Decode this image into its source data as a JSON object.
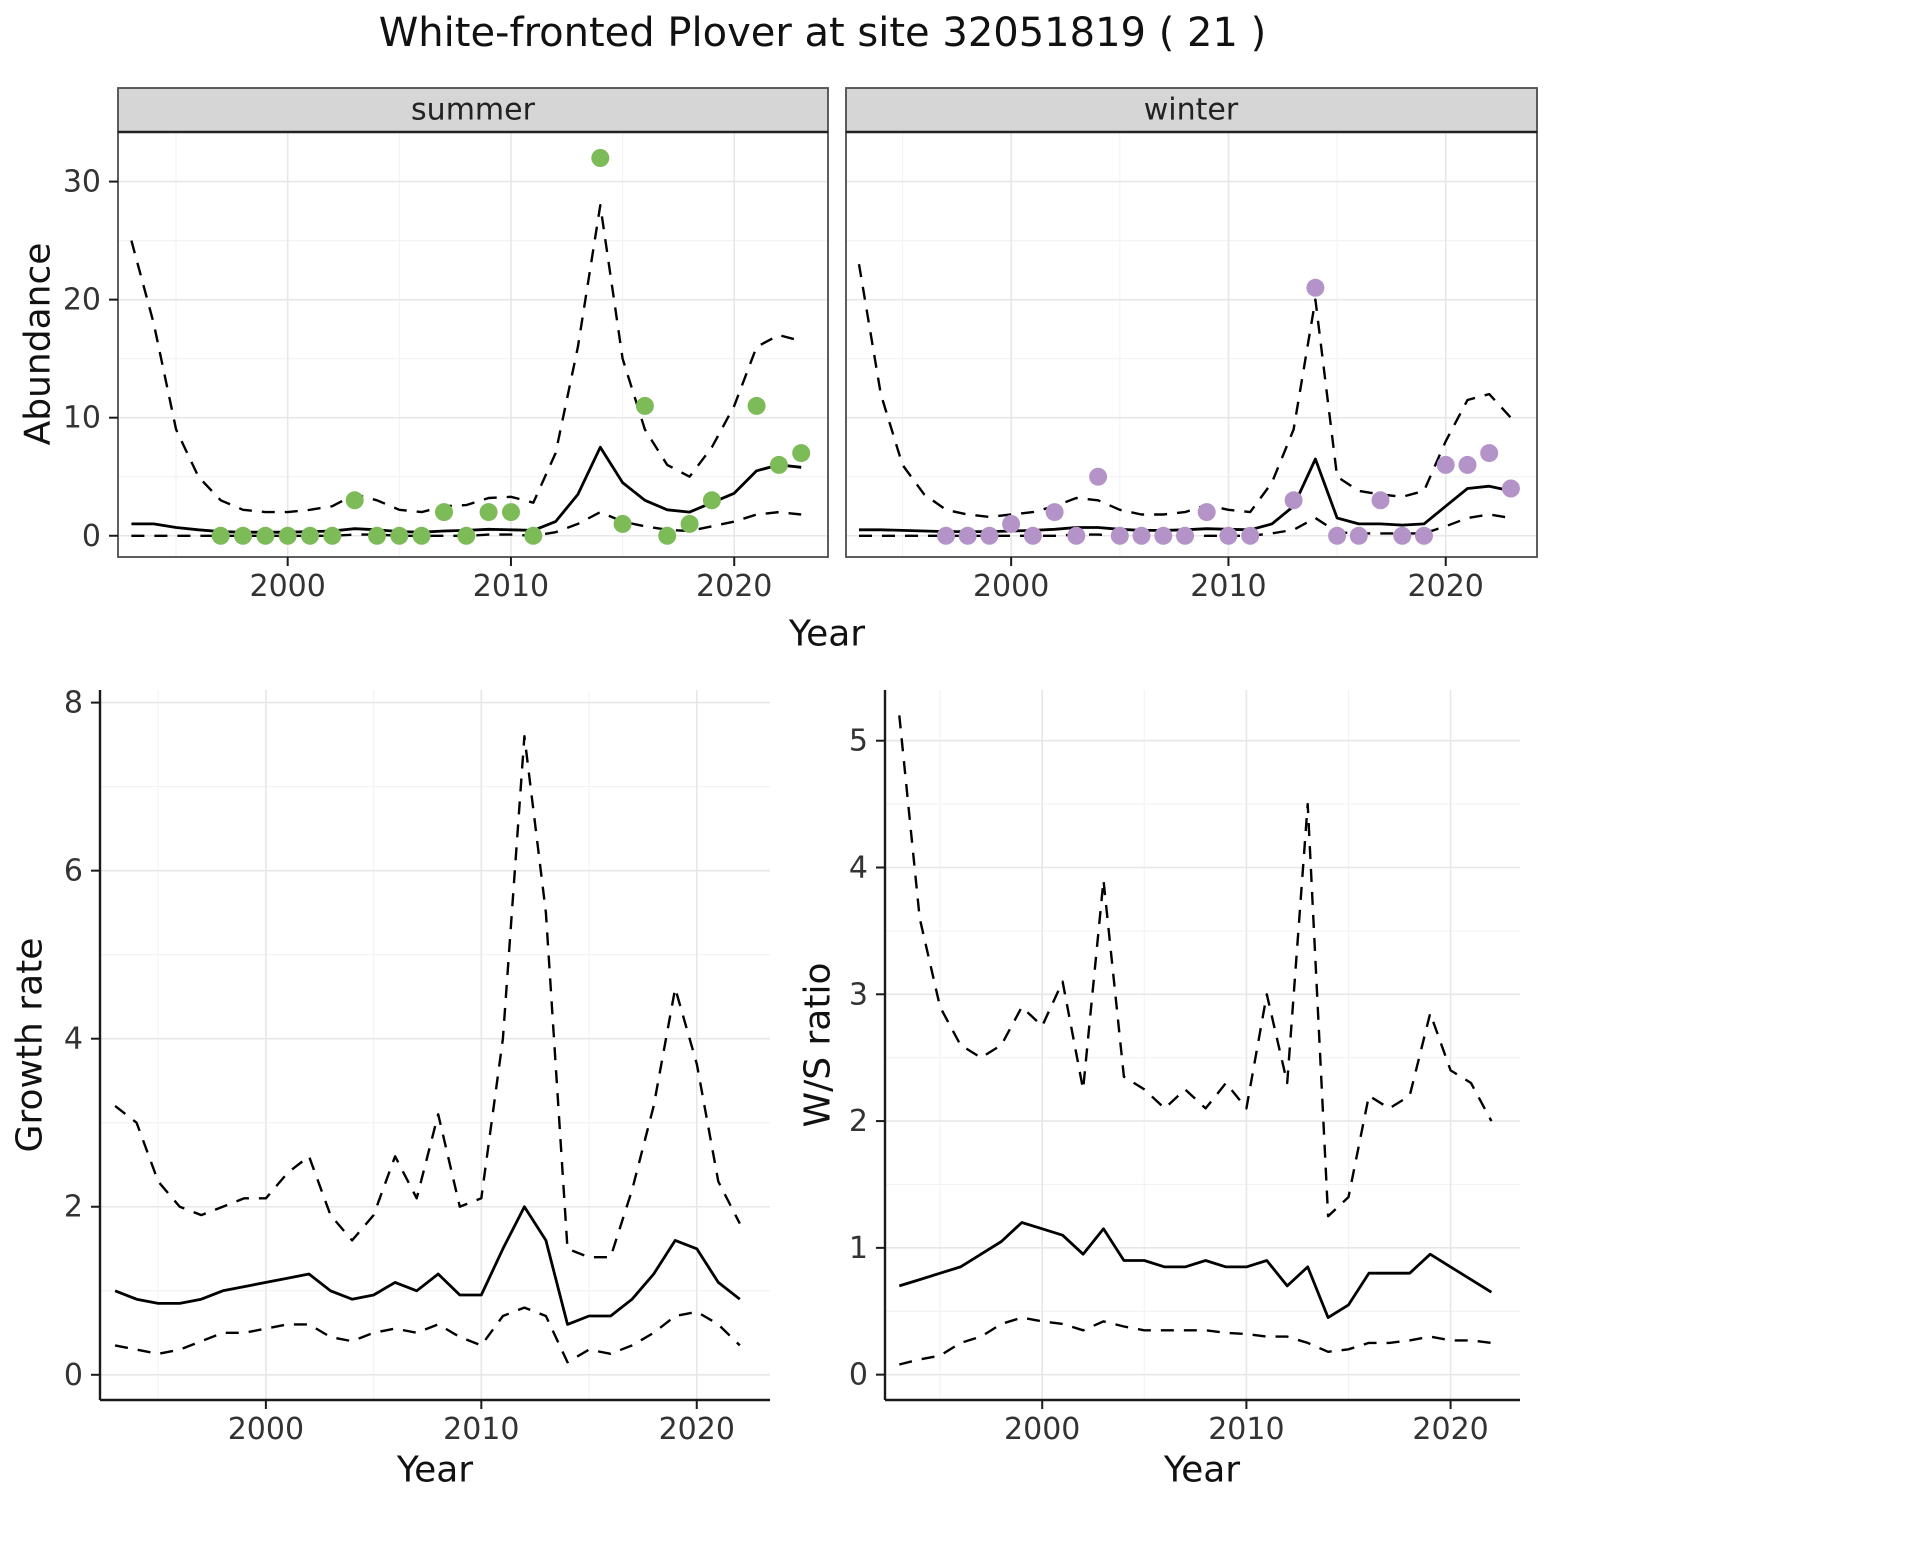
{
  "title": "White-fronted Plover at site 32051819 ( 21 )",
  "facets": {
    "summer": "summer",
    "winter": "winter"
  },
  "axis_labels": {
    "abundance": "Abundance",
    "year": "Year",
    "growth_rate": "Growth rate",
    "ws_ratio": "W/S ratio"
  },
  "colors": {
    "summer_point": "#7cbb58",
    "winter_point": "#b494c8",
    "line": "#000000",
    "strip_bg": "#d6d6d6",
    "grid_major": "#e7e7e7",
    "grid_minor": "#f3f3f3",
    "panel_border": "#4d4d4d",
    "axis_line": "#1a1a1a",
    "tick_text": "#333333"
  },
  "chart_data": [
    {
      "id": "abundance_summer",
      "type": "line",
      "facet_label": "summer",
      "xlabel": "Year",
      "ylabel": "Abundance",
      "xlim": [
        1992.4,
        2024.2
      ],
      "ylim": [
        -1.8,
        34.2
      ],
      "xticks": [
        2000,
        2010,
        2020
      ],
      "xticks_minor": [
        1995,
        2005,
        2015
      ],
      "yticks": [
        0,
        10,
        20,
        30
      ],
      "yticks_minor": [
        5,
        15,
        25
      ],
      "x": [
        1993,
        1994,
        1995,
        1996,
        1997,
        1998,
        1999,
        2000,
        2001,
        2002,
        2003,
        2004,
        2005,
        2006,
        2007,
        2008,
        2009,
        2010,
        2011,
        2012,
        2013,
        2014,
        2015,
        2016,
        2017,
        2018,
        2019,
        2020,
        2021,
        2022,
        2023
      ],
      "series": [
        {
          "name": "median",
          "style": "solid",
          "values": [
            1.0,
            1.0,
            0.7,
            0.5,
            0.35,
            0.3,
            0.3,
            0.3,
            0.35,
            0.4,
            0.6,
            0.5,
            0.35,
            0.3,
            0.4,
            0.45,
            0.55,
            0.5,
            0.45,
            1.2,
            3.5,
            7.5,
            4.5,
            3.0,
            2.2,
            2.0,
            2.8,
            3.6,
            5.5,
            6.0,
            5.8
          ]
        },
        {
          "name": "upper",
          "style": "dashed",
          "values": [
            25,
            18,
            9,
            5,
            3,
            2.2,
            2.0,
            2.0,
            2.2,
            2.5,
            3.5,
            3.0,
            2.2,
            2.0,
            2.5,
            2.6,
            3.2,
            3.3,
            2.8,
            7,
            16,
            28,
            15,
            9,
            6,
            5,
            7.5,
            11,
            16,
            17,
            16.5
          ]
        },
        {
          "name": "lower",
          "style": "dashed",
          "values": [
            0,
            0,
            0,
            0,
            0,
            0,
            0,
            0,
            0,
            0,
            0.1,
            0.1,
            0,
            0,
            0,
            0,
            0.1,
            0.1,
            0,
            0.3,
            1.0,
            2.0,
            1.2,
            0.8,
            0.5,
            0.4,
            0.8,
            1.2,
            1.8,
            2.0,
            1.8
          ]
        }
      ],
      "points": {
        "name": "observed-counts",
        "color_key": "summer_point",
        "x": [
          1997,
          1998,
          1999,
          2000,
          2001,
          2002,
          2003,
          2004,
          2005,
          2006,
          2007,
          2008,
          2009,
          2010,
          2011,
          2014,
          2015,
          2016,
          2017,
          2018,
          2019,
          2021,
          2022,
          2023
        ],
        "y": [
          0,
          0,
          0,
          0,
          0,
          0,
          3,
          0,
          0,
          0,
          2,
          0,
          2,
          2,
          0,
          32,
          1,
          11,
          0,
          1,
          3,
          11,
          6,
          7
        ]
      }
    },
    {
      "id": "abundance_winter",
      "type": "line",
      "facet_label": "winter",
      "xlabel": "Year",
      "ylabel": "Abundance",
      "xlim": [
        1992.4,
        2024.2
      ],
      "ylim": [
        -1.8,
        34.2
      ],
      "xticks": [
        2000,
        2010,
        2020
      ],
      "xticks_minor": [
        1995,
        2005,
        2015
      ],
      "yticks": [
        0,
        10,
        20,
        30
      ],
      "yticks_minor": [
        5,
        15,
        25
      ],
      "x": [
        1993,
        1994,
        1995,
        1996,
        1997,
        1998,
        1999,
        2000,
        2001,
        2002,
        2003,
        2004,
        2005,
        2006,
        2007,
        2008,
        2009,
        2010,
        2011,
        2012,
        2013,
        2014,
        2015,
        2016,
        2017,
        2018,
        2019,
        2020,
        2021,
        2022,
        2023
      ],
      "series": [
        {
          "name": "median",
          "style": "solid",
          "values": [
            0.5,
            0.5,
            0.45,
            0.4,
            0.35,
            0.35,
            0.35,
            0.4,
            0.45,
            0.55,
            0.7,
            0.7,
            0.55,
            0.45,
            0.45,
            0.5,
            0.6,
            0.55,
            0.5,
            1.0,
            2.5,
            6.5,
            1.5,
            1.0,
            1.0,
            0.9,
            1.0,
            2.5,
            4.0,
            4.2,
            3.8
          ]
        },
        {
          "name": "upper",
          "style": "dashed",
          "values": [
            23,
            12,
            6,
            3.5,
            2.2,
            1.8,
            1.6,
            1.8,
            2.0,
            2.5,
            3.2,
            3.0,
            2.2,
            1.8,
            1.8,
            2.0,
            2.6,
            2.2,
            2.0,
            4.5,
            9,
            20,
            5,
            3.8,
            3.5,
            3.3,
            3.8,
            8,
            11.5,
            12,
            10
          ]
        },
        {
          "name": "lower",
          "style": "dashed",
          "values": [
            0,
            0,
            0,
            0,
            0,
            0,
            0,
            0,
            0,
            0,
            0.1,
            0.1,
            0,
            0,
            0,
            0,
            0,
            0,
            0,
            0.2,
            0.5,
            1.5,
            0.3,
            0.2,
            0.2,
            0.2,
            0.2,
            0.8,
            1.5,
            1.8,
            1.5
          ]
        }
      ],
      "points": {
        "name": "observed-counts",
        "color_key": "winter_point",
        "x": [
          1997,
          1998,
          1999,
          2000,
          2001,
          2002,
          2003,
          2004,
          2005,
          2006,
          2007,
          2008,
          2009,
          2010,
          2011,
          2013,
          2014,
          2015,
          2016,
          2017,
          2018,
          2019,
          2020,
          2021,
          2022,
          2023
        ],
        "y": [
          0,
          0,
          0,
          1,
          0,
          2,
          0,
          5,
          0,
          0,
          0,
          0,
          2,
          0,
          0,
          3,
          21,
          0,
          0,
          3,
          0,
          0,
          6,
          6,
          7,
          4
        ]
      }
    },
    {
      "id": "growth_rate",
      "type": "line",
      "facet_label": "",
      "xlabel": "Year",
      "ylabel": "Growth rate",
      "xlim": [
        1992.3,
        2023.4
      ],
      "ylim": [
        -0.3,
        8.15
      ],
      "xticks": [
        2000,
        2010,
        2020
      ],
      "xticks_minor": [
        1995,
        2005,
        2015
      ],
      "yticks": [
        0,
        2,
        4,
        6,
        8
      ],
      "yticks_minor": [
        1,
        3,
        5,
        7
      ],
      "x": [
        1993,
        1994,
        1995,
        1996,
        1997,
        1998,
        1999,
        2000,
        2001,
        2002,
        2003,
        2004,
        2005,
        2006,
        2007,
        2008,
        2009,
        2010,
        2011,
        2012,
        2013,
        2014,
        2015,
        2016,
        2017,
        2018,
        2019,
        2020,
        2021,
        2022
      ],
      "series": [
        {
          "name": "median",
          "style": "solid",
          "values": [
            1.0,
            0.9,
            0.85,
            0.85,
            0.9,
            1.0,
            1.05,
            1.1,
            1.15,
            1.2,
            1.0,
            0.9,
            0.95,
            1.1,
            1.0,
            1.2,
            0.95,
            0.95,
            1.5,
            2.0,
            1.6,
            0.6,
            0.7,
            0.7,
            0.9,
            1.2,
            1.6,
            1.5,
            1.1,
            0.9
          ]
        },
        {
          "name": "upper",
          "style": "dashed",
          "values": [
            3.2,
            3.0,
            2.3,
            2.0,
            1.9,
            2.0,
            2.1,
            2.1,
            2.4,
            2.6,
            1.9,
            1.6,
            1.9,
            2.6,
            2.1,
            3.1,
            2.0,
            2.1,
            4.0,
            7.6,
            5.5,
            1.5,
            1.4,
            1.4,
            2.2,
            3.2,
            4.6,
            3.7,
            2.3,
            1.8
          ]
        },
        {
          "name": "lower",
          "style": "dashed",
          "values": [
            0.35,
            0.3,
            0.25,
            0.3,
            0.4,
            0.5,
            0.5,
            0.55,
            0.6,
            0.6,
            0.45,
            0.4,
            0.5,
            0.55,
            0.5,
            0.6,
            0.45,
            0.35,
            0.7,
            0.8,
            0.7,
            0.15,
            0.3,
            0.25,
            0.35,
            0.5,
            0.7,
            0.75,
            0.6,
            0.35
          ]
        }
      ]
    },
    {
      "id": "ws_ratio",
      "type": "line",
      "facet_label": "",
      "xlabel": "Year",
      "ylabel": "W/S ratio",
      "xlim": [
        1992.3,
        2023.4
      ],
      "ylim": [
        -0.2,
        5.4
      ],
      "xticks": [
        2000,
        2010,
        2020
      ],
      "xticks_minor": [
        1995,
        2005,
        2015
      ],
      "yticks": [
        0,
        1,
        2,
        3,
        4,
        5
      ],
      "yticks_minor": [
        0.5,
        1.5,
        2.5,
        3.5,
        4.5
      ],
      "x": [
        1993,
        1994,
        1995,
        1996,
        1997,
        1998,
        1999,
        2000,
        2001,
        2002,
        2003,
        2004,
        2005,
        2006,
        2007,
        2008,
        2009,
        2010,
        2011,
        2012,
        2013,
        2014,
        2015,
        2016,
        2017,
        2018,
        2019,
        2020,
        2021,
        2022
      ],
      "series": [
        {
          "name": "median",
          "style": "solid",
          "values": [
            0.7,
            0.75,
            0.8,
            0.85,
            0.95,
            1.05,
            1.2,
            1.15,
            1.1,
            0.95,
            1.15,
            0.9,
            0.9,
            0.85,
            0.85,
            0.9,
            0.85,
            0.85,
            0.9,
            0.7,
            0.85,
            0.45,
            0.55,
            0.8,
            0.8,
            0.8,
            0.95,
            0.85,
            0.75,
            0.65
          ]
        },
        {
          "name": "upper",
          "style": "dashed",
          "values": [
            5.2,
            3.6,
            2.9,
            2.6,
            2.5,
            2.6,
            2.9,
            2.75,
            3.1,
            2.25,
            3.9,
            2.35,
            2.25,
            2.1,
            2.25,
            2.1,
            2.3,
            2.1,
            3.0,
            2.3,
            4.5,
            1.25,
            1.4,
            2.2,
            2.1,
            2.2,
            2.85,
            2.4,
            2.3,
            2.0
          ]
        },
        {
          "name": "lower",
          "style": "dashed",
          "values": [
            0.08,
            0.12,
            0.15,
            0.25,
            0.3,
            0.4,
            0.45,
            0.42,
            0.4,
            0.35,
            0.42,
            0.38,
            0.35,
            0.35,
            0.35,
            0.35,
            0.33,
            0.32,
            0.3,
            0.3,
            0.25,
            0.18,
            0.2,
            0.25,
            0.25,
            0.27,
            0.3,
            0.27,
            0.27,
            0.25
          ]
        }
      ]
    }
  ]
}
